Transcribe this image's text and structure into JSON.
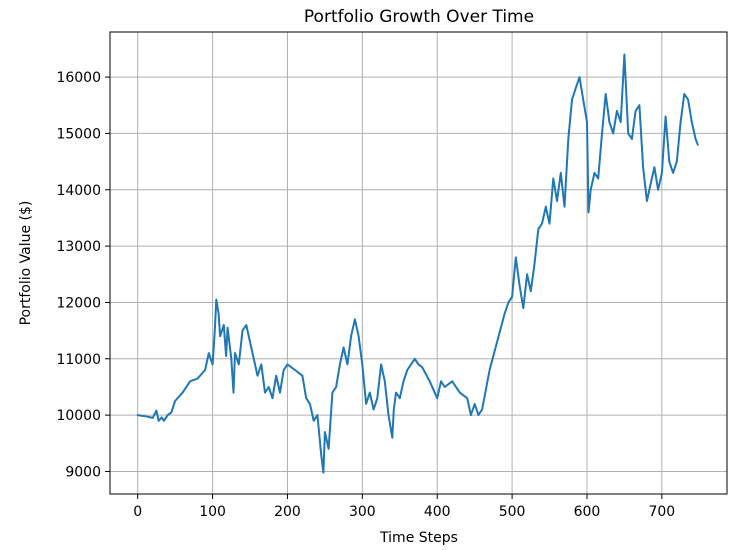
{
  "chart_data": {
    "type": "line",
    "title": "Portfolio Growth Over Time",
    "xlabel": "Time Steps",
    "ylabel": "Portfolio Value ($)",
    "xlim": [
      -37,
      787
    ],
    "ylim": [
      8600,
      16800
    ],
    "xticks": [
      0,
      100,
      200,
      300,
      400,
      500,
      600,
      700
    ],
    "yticks": [
      9000,
      10000,
      11000,
      12000,
      13000,
      14000,
      15000,
      16000
    ],
    "grid": true,
    "colors": {
      "line": "#1f77b4",
      "grid": "#b0b0b0",
      "axes": "#000000"
    },
    "series": [
      {
        "x": [
          0,
          10,
          20,
          25,
          28,
          32,
          35,
          40,
          45,
          50,
          60,
          70,
          80,
          90,
          95,
          100,
          103,
          105,
          108,
          110,
          115,
          118,
          120,
          125,
          128,
          130,
          135,
          140,
          145,
          150,
          155,
          160,
          165,
          170,
          175,
          180,
          185,
          190,
          195,
          200,
          210,
          220,
          225,
          230,
          235,
          240,
          245,
          248,
          250,
          255,
          260,
          265,
          270,
          275,
          280,
          285,
          290,
          295,
          300,
          305,
          310,
          315,
          320,
          325,
          330,
          335,
          340,
          342,
          345,
          350,
          355,
          360,
          365,
          370,
          375,
          380,
          390,
          400,
          405,
          410,
          420,
          430,
          440,
          445,
          450,
          455,
          460,
          470,
          480,
          490,
          495,
          500,
          505,
          510,
          515,
          520,
          525,
          530,
          535,
          540,
          545,
          550,
          555,
          560,
          565,
          570,
          575,
          580,
          585,
          590,
          595,
          600,
          602,
          605,
          610,
          615,
          620,
          625,
          630,
          635,
          640,
          645,
          650,
          655,
          660,
          665,
          670,
          675,
          680,
          685,
          690,
          695,
          700,
          705,
          710,
          715,
          720,
          725,
          730,
          735,
          740,
          745,
          748
        ],
        "y": [
          10000,
          9980,
          9950,
          10080,
          9900,
          9960,
          9900,
          10000,
          10050,
          10250,
          10400,
          10600,
          10650,
          10800,
          11100,
          10900,
          11500,
          12050,
          11800,
          11400,
          11600,
          11050,
          11550,
          11000,
          10400,
          11100,
          10900,
          11500,
          11600,
          11300,
          11000,
          10700,
          10900,
          10400,
          10500,
          10300,
          10700,
          10400,
          10800,
          10900,
          10800,
          10700,
          10300,
          10200,
          9900,
          10000,
          9300,
          8980,
          9700,
          9400,
          10400,
          10500,
          10900,
          11200,
          10900,
          11400,
          11700,
          11400,
          10900,
          10200,
          10400,
          10100,
          10300,
          10900,
          10600,
          10000,
          9600,
          10100,
          10400,
          10300,
          10600,
          10800,
          10900,
          11000,
          10900,
          10850,
          10600,
          10300,
          10600,
          10500,
          10600,
          10400,
          10300,
          10000,
          10200,
          10000,
          10100,
          10800,
          11300,
          11800,
          12000,
          12100,
          12800,
          12300,
          11900,
          12500,
          12200,
          12700,
          13300,
          13400,
          13700,
          13400,
          14200,
          13800,
          14300,
          13700,
          14900,
          15600,
          15800,
          16000,
          15600,
          15200,
          13600,
          14000,
          14300,
          14200,
          15000,
          15700,
          15200,
          15000,
          15400,
          15200,
          16400,
          15000,
          14900,
          15400,
          15500,
          14400,
          13800,
          14100,
          14400,
          14000,
          14300,
          15300,
          14500,
          14300,
          14500,
          15200,
          15700,
          15600,
          15200,
          14900,
          14800
        ]
      }
    ]
  }
}
